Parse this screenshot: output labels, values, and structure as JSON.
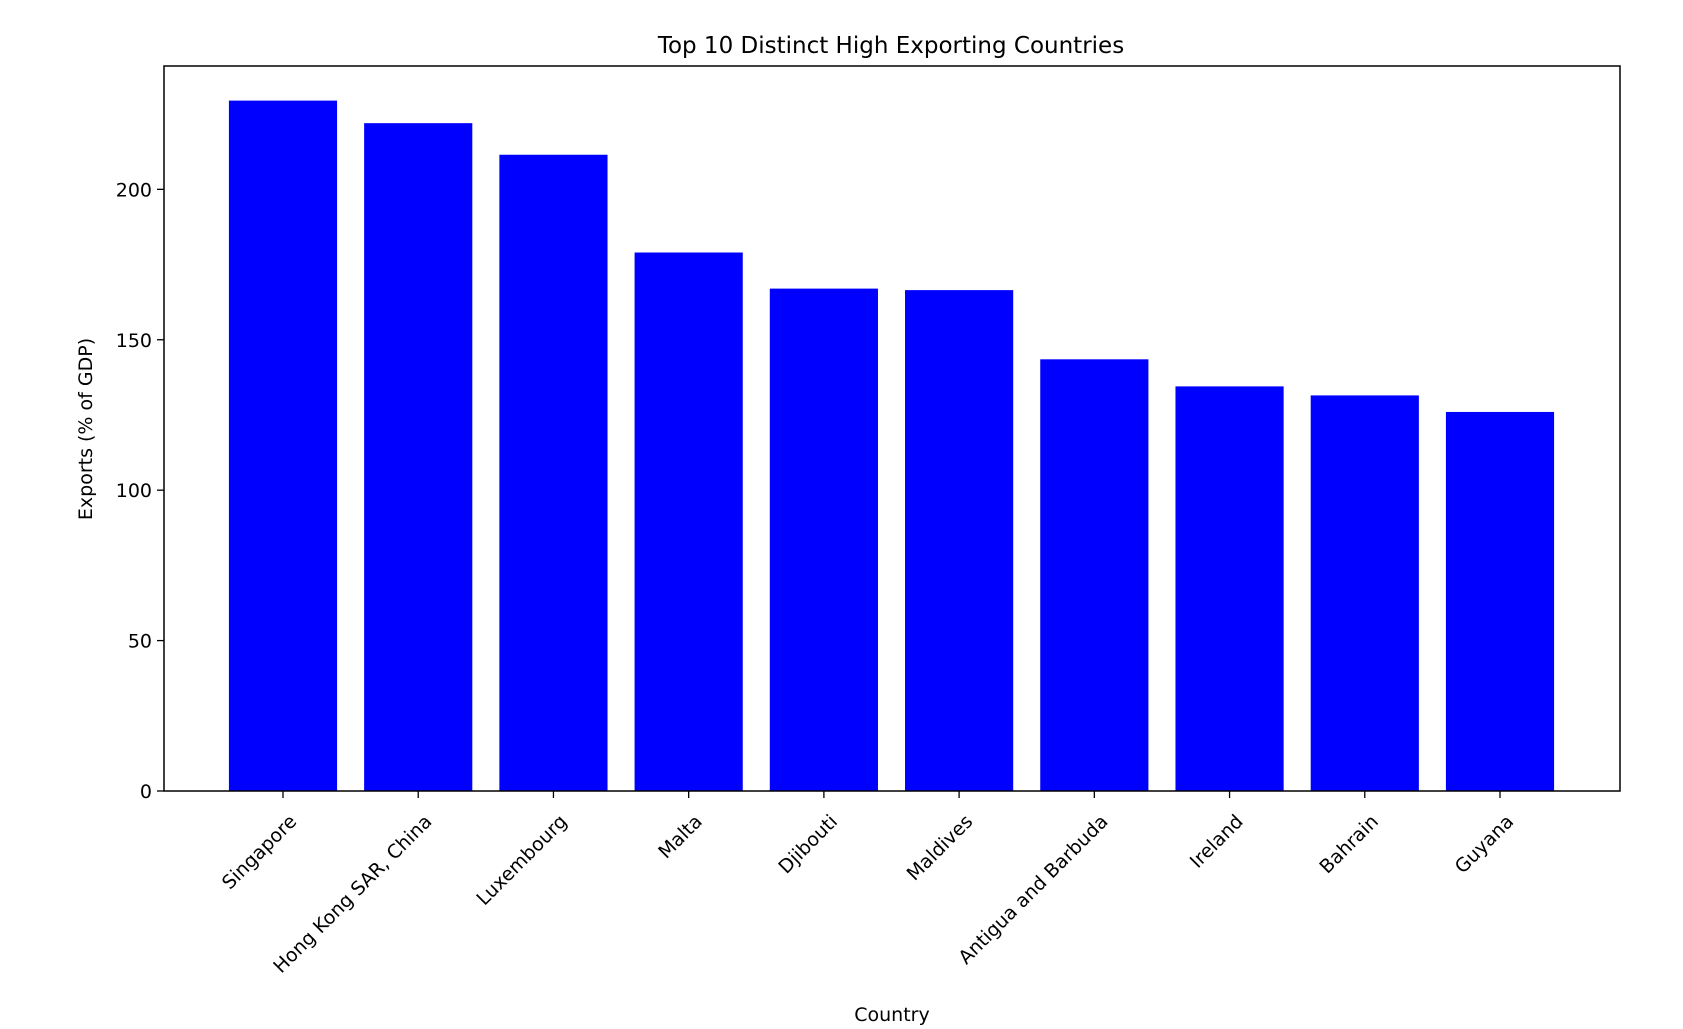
{
  "chart_data": {
    "type": "bar",
    "title": "Top 10 Distinct High Exporting Countries",
    "xlabel": "Country",
    "ylabel": "Exports (% of GDP)",
    "categories": [
      "Singapore",
      "Hong Kong SAR, China",
      "Luxembourg",
      "Malta",
      "Djibouti",
      "Maldives",
      "Antigua and Barbuda",
      "Ireland",
      "Bahrain",
      "Guyana"
    ],
    "values": [
      229.5,
      222.0,
      211.5,
      179.0,
      167.0,
      166.5,
      143.5,
      134.5,
      131.5,
      126.0
    ],
    "ylim": [
      0,
      241
    ],
    "yticks": [
      0,
      50,
      100,
      150,
      200
    ],
    "bar_color": "#0000ff",
    "grid": false,
    "legend": "none"
  }
}
